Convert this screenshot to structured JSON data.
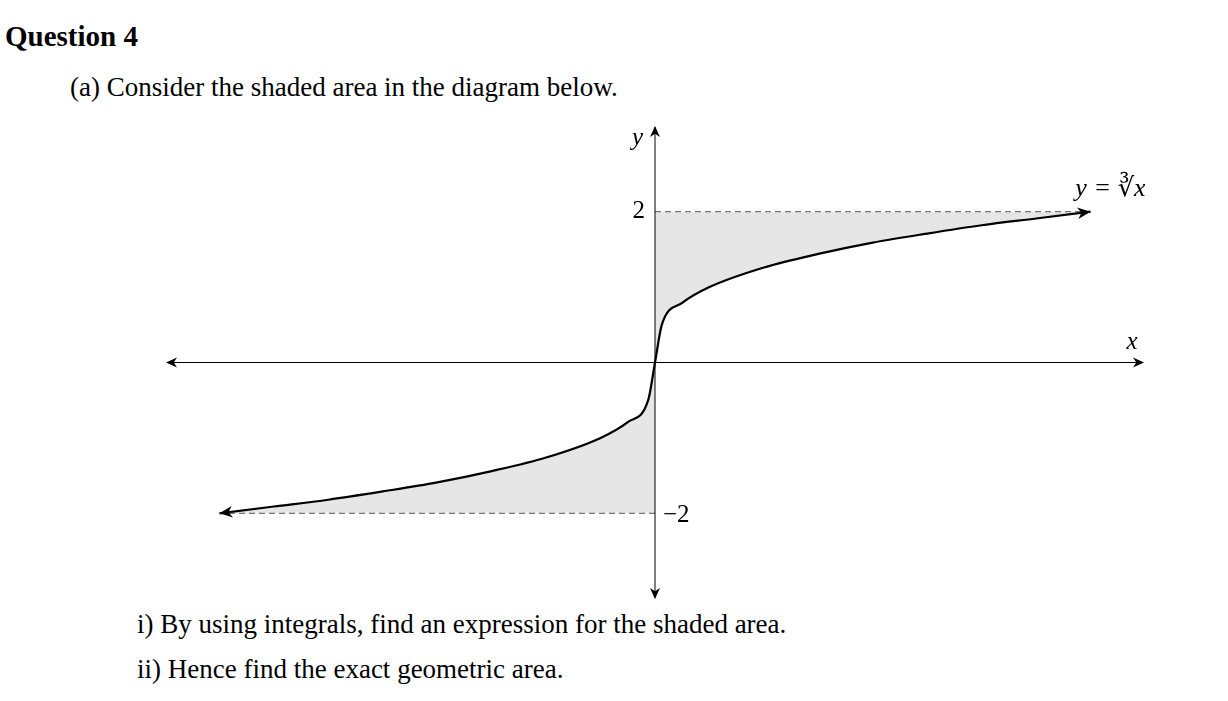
{
  "question": {
    "title": "Question 4",
    "part": "(a) Consider the shaded area in the diagram below.",
    "items": [
      "i) By using integrals, find an expression for the shaded area.",
      "ii) Hence find the exact geometric area."
    ]
  },
  "chart_data": {
    "type": "line",
    "x": [
      -8,
      -7,
      -6,
      -5,
      -4,
      -3,
      -2,
      -1,
      -0.5,
      -0.125,
      0,
      0.125,
      0.5,
      1,
      2,
      3,
      4,
      5,
      6,
      7,
      8
    ],
    "values": [
      -2,
      -1.91,
      -1.82,
      -1.71,
      -1.59,
      -1.44,
      -1.26,
      -1,
      -0.79,
      -0.5,
      0,
      0.5,
      0.79,
      1,
      1.26,
      1.44,
      1.59,
      1.71,
      1.82,
      1.91,
      2
    ],
    "color": "#000000",
    "x_label": "x",
    "y_label": "y",
    "annotation": "y = ∛x",
    "xlim": [
      -9,
      9
    ],
    "ylim": [
      -3.15,
      3.15
    ],
    "yticks": [
      {
        "value": -2,
        "label": "−2"
      },
      2
    ],
    "tick_labels": "y",
    "grid": false
  }
}
